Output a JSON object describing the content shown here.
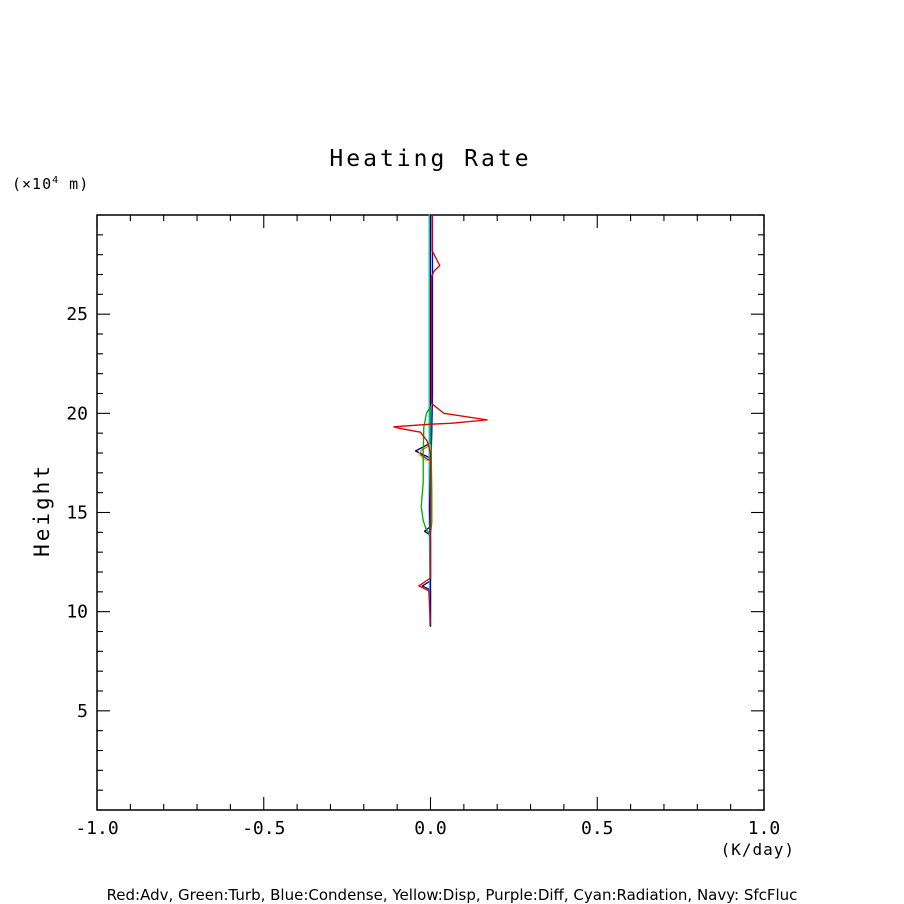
{
  "chart_data": {
    "type": "line",
    "title": "Heating Rate",
    "ylabel": "Height",
    "xlabel": "(K/day)",
    "y_unit": {
      "prefix": "(×10",
      "superscript": "4",
      "suffix": " m)"
    },
    "legend_text": "Red:Adv, Green:Turb, Blue:Condense, Yellow:Disp, Purple:Diff, Cyan:Radiation, Navy: SfcFluc",
    "xlim": [
      -1.0,
      1.0
    ],
    "ylim": [
      0,
      30
    ],
    "grid": false,
    "x_axis": {
      "minor_step": 0.1,
      "ticks": [
        {
          "value": -1.0,
          "label": "-1.0"
        },
        {
          "value": -0.5,
          "label": "-0.5"
        },
        {
          "value": 0.0,
          "label": "0.0"
        },
        {
          "value": 0.5,
          "label": "0.5"
        },
        {
          "value": 1.0,
          "label": "1.0"
        }
      ]
    },
    "y_axis": {
      "minor_step": 1,
      "ticks": [
        {
          "value": 5,
          "label": "5"
        },
        {
          "value": 10,
          "label": "10"
        },
        {
          "value": 15,
          "label": "15"
        },
        {
          "value": 20,
          "label": "20"
        },
        {
          "value": 25,
          "label": "25"
        }
      ]
    },
    "series": [
      {
        "name": "Adv",
        "color": "#dd0000",
        "points": [
          [
            0.005,
            30
          ],
          [
            0.005,
            28.2
          ],
          [
            0.02,
            27.7
          ],
          [
            0.028,
            27.45
          ],
          [
            0.012,
            27.2
          ],
          [
            0.003,
            26.9
          ],
          [
            0.003,
            20.5
          ],
          [
            0.04,
            20.0
          ],
          [
            0.17,
            19.67
          ],
          [
            0.06,
            19.5
          ],
          [
            0.0,
            19.45
          ],
          [
            -0.11,
            19.32
          ],
          [
            -0.095,
            19.25
          ],
          [
            -0.03,
            19.05
          ],
          [
            -0.01,
            18.6
          ],
          [
            0.0,
            18.0
          ],
          [
            0.0,
            11.7
          ],
          [
            -0.035,
            11.3
          ],
          [
            -0.005,
            11.05
          ],
          [
            0.0,
            9.3
          ]
        ]
      },
      {
        "name": "Turb",
        "color": "#00aa00",
        "points": [
          [
            0.0,
            20.35
          ],
          [
            -0.012,
            20.0
          ],
          [
            -0.02,
            19.3
          ],
          [
            -0.022,
            18.0
          ],
          [
            -0.022,
            16.5
          ],
          [
            -0.028,
            15.3
          ],
          [
            -0.022,
            14.6
          ],
          [
            -0.012,
            14.1
          ],
          [
            0.0,
            13.9
          ],
          [
            0.004,
            14.5
          ],
          [
            0.004,
            16.0
          ],
          [
            0.002,
            18.0
          ],
          [
            0.0,
            19.0
          ],
          [
            0.0,
            20.35
          ]
        ]
      },
      {
        "name": "Condense",
        "color": "#0000cc",
        "points": [
          [
            0.006,
            30
          ],
          [
            0.006,
            21.0
          ],
          [
            0.004,
            19.0
          ],
          [
            0.0,
            17.0
          ],
          [
            -0.003,
            15.2
          ],
          [
            0.0,
            13.5
          ],
          [
            0.0,
            9.3
          ]
        ]
      },
      {
        "name": "Disp",
        "color": "#cccc00",
        "points": [
          [
            0.0,
            18.45
          ],
          [
            -0.025,
            18.2
          ],
          [
            -0.035,
            17.95
          ],
          [
            -0.02,
            17.7
          ],
          [
            0.0,
            17.55
          ]
        ]
      },
      {
        "name": "Diff",
        "color": "#990099",
        "points": [
          [
            -0.004,
            18.4
          ],
          [
            -0.03,
            18.1
          ],
          [
            -0.028,
            17.9
          ],
          [
            -0.01,
            17.7
          ],
          [
            0.0,
            17.6
          ]
        ]
      },
      {
        "name": "Radiation",
        "color": "#00bbbb",
        "points": [
          [
            -0.004,
            30
          ],
          [
            -0.004,
            20.0
          ],
          [
            -0.004,
            15.0
          ],
          [
            -0.002,
            12.0
          ],
          [
            -0.002,
            9.3
          ]
        ]
      },
      {
        "name": "SfcFluc",
        "color": "#000066",
        "points": [
          [
            0.0,
            30
          ],
          [
            0.0,
            18.5
          ],
          [
            -0.045,
            18.1
          ],
          [
            -0.02,
            17.9
          ],
          [
            0.0,
            17.75
          ],
          [
            0.0,
            14.3
          ],
          [
            -0.018,
            14.05
          ],
          [
            0.0,
            13.85
          ],
          [
            0.0,
            11.55
          ],
          [
            -0.025,
            11.3
          ],
          [
            0.0,
            11.1
          ],
          [
            0.0,
            9.25
          ]
        ]
      }
    ]
  }
}
